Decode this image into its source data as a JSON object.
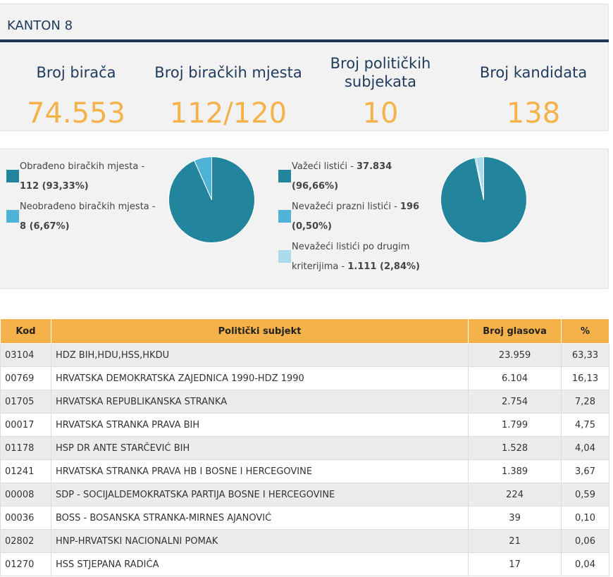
{
  "title": "KANTON 8",
  "stats": [
    {
      "label": "Broj birača",
      "value": "74.553"
    },
    {
      "label": "Broj biračkih mjesta",
      "value": "112/120"
    },
    {
      "label": "Broj političkih subjekata",
      "value": "10"
    },
    {
      "label": "Broj kandidata",
      "value": "138"
    }
  ],
  "colors": {
    "accent": "#f5b24a",
    "navy": "#1d3557",
    "pie_main": "#23849d",
    "pie_second": "#4fb3d9",
    "pie_third": "#a8dcea"
  },
  "polling_stations": {
    "processed_label": "Obrađeno biračkih mjesta -",
    "processed_value": "112 (93,33%)",
    "unprocessed_label": "Neobrađeno biračkih mjesta -",
    "unprocessed_value": "8 (6,67%)",
    "processed_fraction": 0.9333
  },
  "ballots": {
    "valid_label": "Važeći listići -",
    "valid_value": "37.834",
    "valid_pct": "(96,66%)",
    "blank_label": "Nevažeći prazni listići -",
    "blank_value": "196",
    "blank_pct": "(0,50%)",
    "other_label_1": "Nevažeći listići po drugim",
    "other_label_2": "kriterijima -",
    "other_value": "1.111 (2,84%)",
    "fractions": [
      0.9666,
      0.005,
      0.0284
    ]
  },
  "table": {
    "headers": [
      "Kod",
      "Politički subjekt",
      "Broj glasova",
      "%"
    ],
    "rows": [
      {
        "code": "03104",
        "name": "HDZ BIH,HDU,HSS,HKDU",
        "votes": "23.959",
        "pct": "63,33"
      },
      {
        "code": "00769",
        "name": "HRVATSKA DEMOKRATSKA ZAJEDNICA 1990-HDZ 1990",
        "votes": "6.104",
        "pct": "16,13"
      },
      {
        "code": "01705",
        "name": "HRVATSKA REPUBLIKANSKA STRANKA",
        "votes": "2.754",
        "pct": "7,28"
      },
      {
        "code": "00017",
        "name": "HRVATSKA STRANKA PRAVA BIH",
        "votes": "1.799",
        "pct": "4,75"
      },
      {
        "code": "01178",
        "name": "HSP DR ANTE STARČEVIĆ BIH",
        "votes": "1.528",
        "pct": "4,04"
      },
      {
        "code": "01241",
        "name": "HRVATSKA STRANKA PRAVA HB I BOSNE I HERCEGOVINE",
        "votes": "1.389",
        "pct": "3,67"
      },
      {
        "code": "00008",
        "name": "SDP - SOCIJALDEMOKRATSKA PARTIJA BOSNE I HERCEGOVINE",
        "votes": "224",
        "pct": "0,59"
      },
      {
        "code": "00036",
        "name": "BOSS - BOSANSKA STRANKA-MIRNES AJANOVIĆ",
        "votes": "39",
        "pct": "0,10"
      },
      {
        "code": "02802",
        "name": "HNP-HRVATSKI NACIONALNI POMAK",
        "votes": "21",
        "pct": "0,06"
      },
      {
        "code": "01270",
        "name": "HSS STJEPANA RADIĆA",
        "votes": "17",
        "pct": "0,04"
      }
    ]
  }
}
